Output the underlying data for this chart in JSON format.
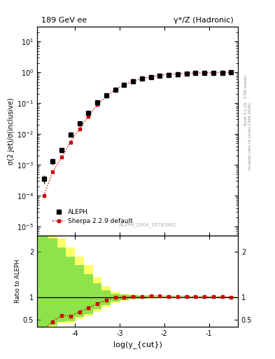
{
  "title_left": "189 GeV ee",
  "title_right": "γ*/Z (Hadronic)",
  "ylabel_main": "σ(2 jet)/σ(inclusive)",
  "ylabel_ratio": "Ratio to ALEPH",
  "xlabel": "log(y_{cut})",
  "watermark": "ALEPH_2004_S5765862",
  "right_label_top": "Rivet 3.1.10,  3.5M events",
  "right_label_bot": "mcplots.cern.ch [arXiv:1306.3436]",
  "log_ycut": [
    -4.7,
    -4.5,
    -4.3,
    -4.1,
    -3.9,
    -3.7,
    -3.5,
    -3.3,
    -3.1,
    -2.9,
    -2.7,
    -2.5,
    -2.3,
    -2.1,
    -1.9,
    -1.7,
    -1.5,
    -1.3,
    -1.1,
    -0.9,
    -0.7,
    -0.5
  ],
  "data_aleph": [
    0.00035,
    0.0013,
    0.003,
    0.0095,
    0.022,
    0.05,
    0.105,
    0.18,
    0.28,
    0.4,
    0.52,
    0.62,
    0.7,
    0.78,
    0.84,
    0.88,
    0.92,
    0.95,
    0.97,
    0.98,
    0.99,
    1.0
  ],
  "data_sherpa": [
    0.0001,
    0.0006,
    0.0018,
    0.0055,
    0.015,
    0.038,
    0.09,
    0.17,
    0.28,
    0.4,
    0.53,
    0.63,
    0.72,
    0.8,
    0.86,
    0.9,
    0.94,
    0.96,
    0.98,
    0.99,
    1.0,
    1.0
  ],
  "data_aleph_err": [
    0.0001,
    0.0003,
    0.0005,
    0.001,
    0.002,
    0.004,
    0.008,
    0.01,
    0.012,
    0.012,
    0.012,
    0.01,
    0.01,
    0.008,
    0.006,
    0.005,
    0.004,
    0.003,
    0.002,
    0.002,
    0.001,
    0.001
  ],
  "ratio_sherpa": [
    0.29,
    0.46,
    0.6,
    0.58,
    0.68,
    0.76,
    0.86,
    0.94,
    1.0,
    1.0,
    1.02,
    1.02,
    1.03,
    1.03,
    1.02,
    1.02,
    1.02,
    1.01,
    1.01,
    1.01,
    1.01,
    1.0
  ],
  "band_x_edges": [
    -4.85,
    -4.6,
    -4.4,
    -4.2,
    -4.0,
    -3.8,
    -3.6,
    -3.4,
    -3.2,
    -3.0,
    -2.8,
    -2.6,
    -2.4,
    -2.2,
    -2.0,
    -1.8,
    -1.6,
    -1.4,
    -1.2,
    -1.0,
    -0.8,
    -0.6,
    -0.4
  ],
  "band_yellow_lo": [
    0.35,
    0.35,
    0.42,
    0.43,
    0.52,
    0.58,
    0.68,
    0.78,
    0.88,
    0.92,
    0.95,
    0.96,
    0.97,
    0.98,
    0.99,
    0.99,
    0.99,
    0.99,
    0.99,
    1.0,
    1.0,
    1.0
  ],
  "band_yellow_hi": [
    2.5,
    2.5,
    2.3,
    2.1,
    1.9,
    1.7,
    1.45,
    1.25,
    1.12,
    1.08,
    1.06,
    1.04,
    1.03,
    1.02,
    1.02,
    1.01,
    1.01,
    1.01,
    1.01,
    1.01,
    1.02,
    1.02
  ],
  "band_green_lo": [
    0.35,
    0.38,
    0.46,
    0.47,
    0.57,
    0.63,
    0.73,
    0.83,
    0.91,
    0.94,
    0.96,
    0.97,
    0.98,
    0.99,
    0.99,
    0.99,
    1.0,
    1.0,
    1.0,
    1.0,
    1.0,
    1.0
  ],
  "band_green_hi": [
    2.5,
    2.3,
    2.1,
    1.9,
    1.7,
    1.5,
    1.3,
    1.15,
    1.08,
    1.06,
    1.04,
    1.03,
    1.02,
    1.02,
    1.01,
    1.01,
    1.01,
    1.01,
    1.01,
    1.01,
    1.01,
    1.01
  ],
  "xlim": [
    -4.85,
    -0.35
  ],
  "ylim_main": [
    5e-06,
    30
  ],
  "ylim_ratio": [
    0.35,
    2.35
  ],
  "yticks_ratio": [
    0.5,
    1.0,
    2.0
  ],
  "xticks": [
    -4,
    -3,
    -2,
    -1
  ],
  "color_aleph": "#000000",
  "color_sherpa": "#cc0000",
  "color_yellow": "#ffff66",
  "color_green": "#33cc33",
  "bg_color": "#ffffff",
  "watermark_color": "#aaaaaa",
  "right_label_color": "#888888"
}
